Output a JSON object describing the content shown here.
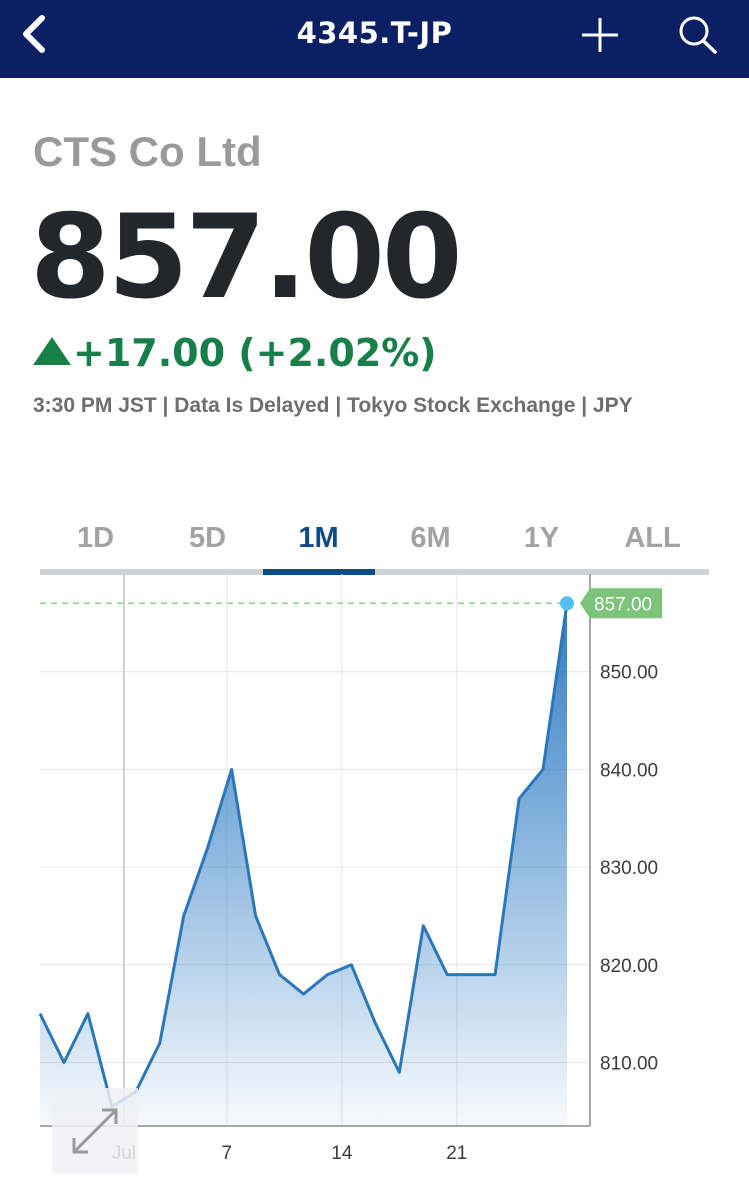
{
  "header": {
    "ticker": "4345.T-JP",
    "icons": {
      "back": "back-chevron-icon",
      "add": "plus-icon",
      "search": "search-icon"
    }
  },
  "quote": {
    "company_name": "CTS Co Ltd",
    "price": "857.00",
    "change": "+17.00 (+2.02%)",
    "change_direction": "up",
    "meta": "3:30 PM JST | Data Is Delayed | Tokyo Stock Exchange | JPY"
  },
  "range_tabs": {
    "items": [
      {
        "label": "1D"
      },
      {
        "label": "5D"
      },
      {
        "label": "1M"
      },
      {
        "label": "6M"
      },
      {
        "label": "1Y"
      },
      {
        "label": "ALL"
      }
    ],
    "selected": "1M"
  },
  "colors": {
    "header_bg": "#0b2064",
    "positive": "#178048",
    "tab_active": "#0c4a8a",
    "line": "#2b77b9",
    "last_price_badge": "#7cc47a",
    "last_price_dot": "#55bff0"
  },
  "chart_data": {
    "type": "area",
    "x": [
      0,
      1,
      2,
      3,
      4,
      5,
      6,
      7,
      8,
      9,
      10,
      11,
      12,
      13,
      14,
      15,
      16,
      17,
      18,
      19,
      20,
      21,
      22
    ],
    "values": [
      815,
      810,
      815,
      805.5,
      807,
      812,
      825,
      832,
      840,
      825,
      819,
      817,
      819,
      820,
      814,
      809,
      824,
      819,
      819,
      819,
      837,
      840,
      857
    ],
    "ylim": [
      803.5,
      860
    ],
    "yticks": [
      "810.00",
      "820.00",
      "830.00",
      "840.00",
      "850.00"
    ],
    "ytick_values": [
      810,
      820,
      830,
      840,
      850
    ],
    "xticks": [
      "Jul",
      "7",
      "14",
      "21"
    ],
    "xtick_positions": [
      3.5,
      7.8,
      12.6,
      17.4
    ],
    "last_price_label": "857.00",
    "last_price": 857,
    "grid": true
  }
}
